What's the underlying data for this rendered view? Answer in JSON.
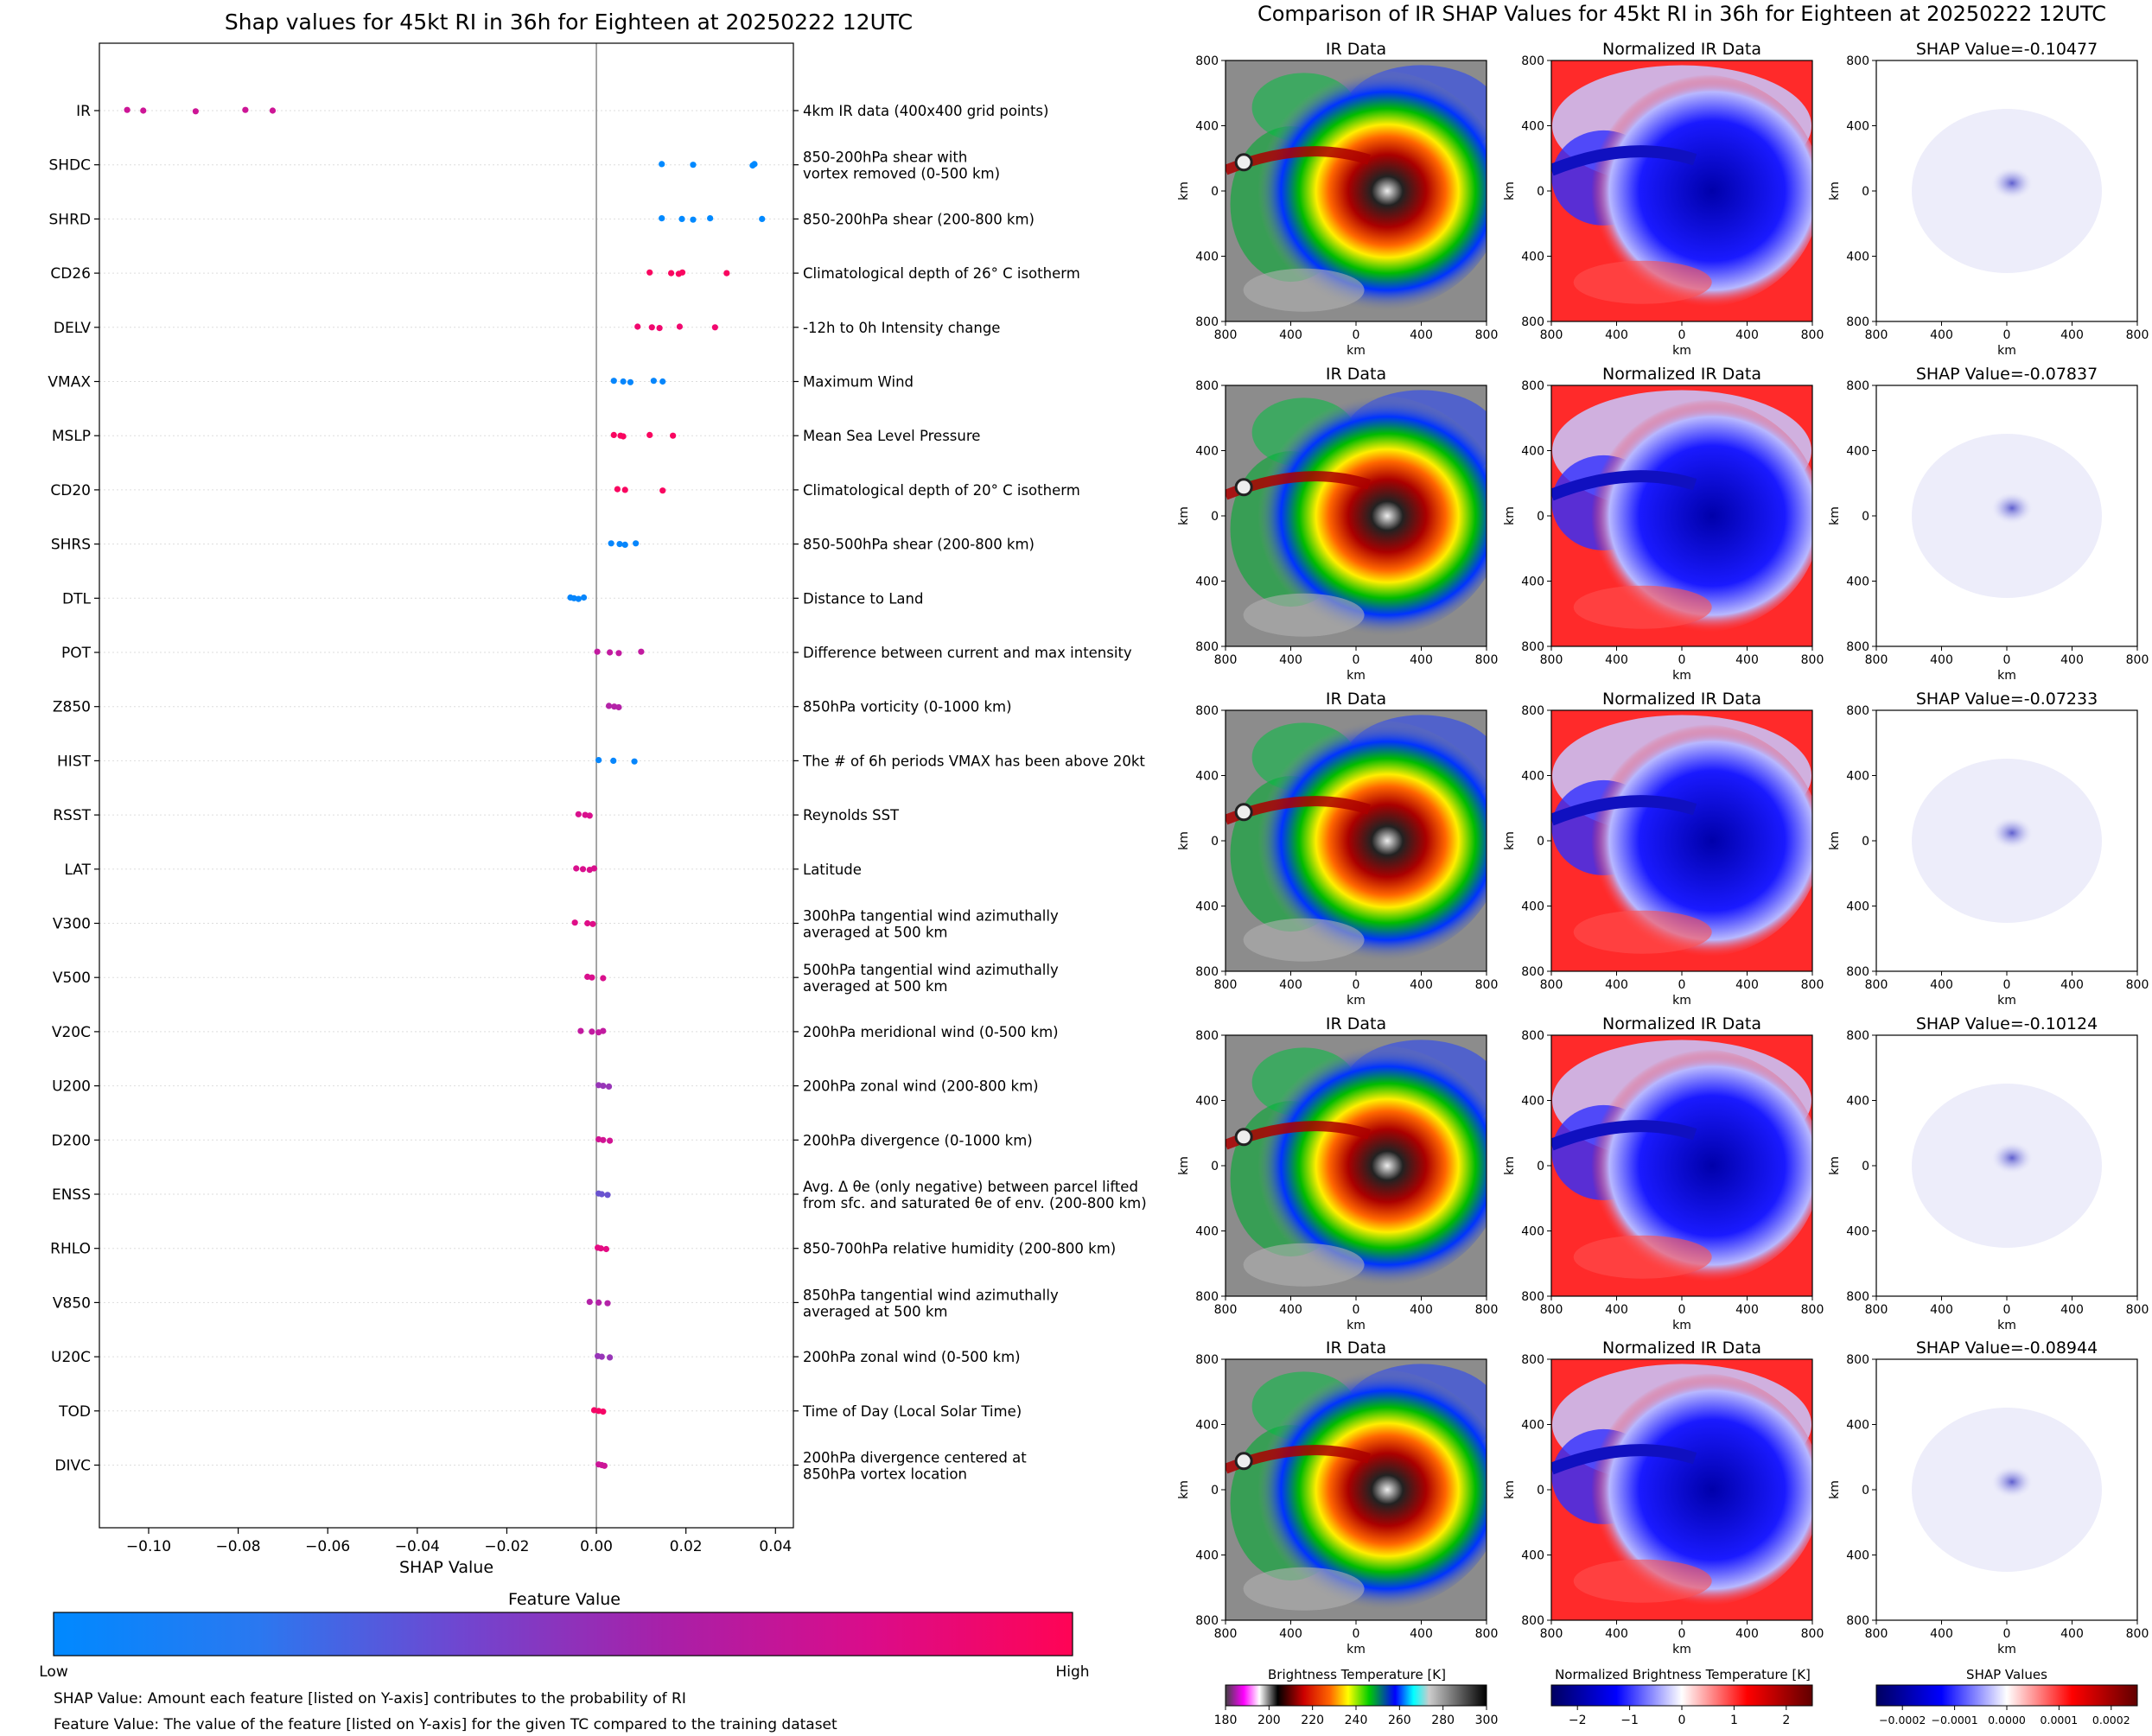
{
  "left": {
    "title": "Shap values for 45kt RI in 36h for Eighteen at 20250222 12UTC",
    "xlabel": "SHAP Value",
    "features": [
      {
        "code": "IR",
        "desc": [
          "4km IR data (400x400 grid points)"
        ]
      },
      {
        "code": "SHDC",
        "desc": [
          "850-200hPa shear with",
          "vortex removed (0-500 km)"
        ]
      },
      {
        "code": "SHRD",
        "desc": [
          "850-200hPa shear (200-800 km)"
        ]
      },
      {
        "code": "CD26",
        "desc": [
          "Climatological depth of 26° C isotherm"
        ]
      },
      {
        "code": "DELV",
        "desc": [
          "-12h to 0h Intensity change"
        ]
      },
      {
        "code": "VMAX",
        "desc": [
          "Maximum Wind"
        ]
      },
      {
        "code": "MSLP",
        "desc": [
          "Mean Sea Level Pressure"
        ]
      },
      {
        "code": "CD20",
        "desc": [
          "Climatological depth of 20° C isotherm"
        ]
      },
      {
        "code": "SHRS",
        "desc": [
          "850-500hPa shear (200-800 km)"
        ]
      },
      {
        "code": "DTL",
        "desc": [
          "Distance to Land"
        ]
      },
      {
        "code": "POT",
        "desc": [
          "Difference between current and max intensity"
        ]
      },
      {
        "code": "Z850",
        "desc": [
          "850hPa vorticity (0-1000 km)"
        ]
      },
      {
        "code": "HIST",
        "desc": [
          "The # of 6h periods VMAX has been above 20kt"
        ]
      },
      {
        "code": "RSST",
        "desc": [
          "Reynolds SST"
        ]
      },
      {
        "code": "LAT",
        "desc": [
          "Latitude"
        ]
      },
      {
        "code": "V300",
        "desc": [
          "300hPa tangential wind azimuthally",
          "averaged at 500 km"
        ]
      },
      {
        "code": "V500",
        "desc": [
          "500hPa tangential wind azimuthally",
          "averaged at 500 km"
        ]
      },
      {
        "code": "V20C",
        "desc": [
          "200hPa meridional wind (0-500 km)"
        ]
      },
      {
        "code": "U200",
        "desc": [
          "200hPa zonal wind (200-800 km)"
        ]
      },
      {
        "code": "D200",
        "desc": [
          "200hPa divergence (0-1000 km)"
        ]
      },
      {
        "code": "ENSS",
        "desc": [
          "Avg. Δ θe (only negative) between parcel lifted",
          "from sfc. and saturated θe of env. (200-800 km)"
        ]
      },
      {
        "code": "RHLO",
        "desc": [
          "850-700hPa relative humidity (200-800 km)"
        ]
      },
      {
        "code": "V850",
        "desc": [
          "850hPa tangential wind azimuthally",
          "averaged at 500 km"
        ]
      },
      {
        "code": "U20C",
        "desc": [
          "200hPa zonal wind (0-500 km)"
        ]
      },
      {
        "code": "TOD",
        "desc": [
          "Time of Day (Local Solar Time)"
        ]
      },
      {
        "code": "DIVC",
        "desc": [
          "200hPa divergence centered at",
          "850hPa vortex location"
        ]
      }
    ],
    "colorbar_title": "Feature Value",
    "colorbar_low": "Low",
    "colorbar_high": "High",
    "note1": "SHAP Value: Amount each feature [listed on Y-axis] contributes to the probability of RI",
    "note2": "Feature Value: The value of the feature [listed on Y-axis] for the given TC compared to the training dataset"
  },
  "chart_data": {
    "type": "scatter",
    "title": "Shap values for 45kt RI in 36h for Eighteen at 20250222 12UTC",
    "xlabel": "SHAP Value",
    "xlim": [
      -0.111,
      0.044
    ],
    "xticks": [
      -0.1,
      -0.08,
      -0.06,
      -0.04,
      -0.02,
      0.0,
      0.02,
      0.04
    ],
    "xtick_labels": [
      "−0.10",
      "−0.08",
      "−0.06",
      "−0.04",
      "−0.02",
      "0.00",
      "0.02",
      "0.04"
    ],
    "colorscale": [
      "#0089ff",
      "#4a66e0",
      "#8a3fc0",
      "#c21aa0",
      "#e80a80",
      "#ff0455"
    ],
    "series": [
      {
        "feature": "IR",
        "points": [
          [
            -0.1048,
            0.66
          ],
          [
            -0.1012,
            0.66
          ],
          [
            -0.0895,
            0.66
          ],
          [
            -0.0784,
            0.66
          ],
          [
            -0.0723,
            0.66
          ]
        ]
      },
      {
        "feature": "SHDC",
        "points": [
          [
            0.0146,
            0.0
          ],
          [
            0.0216,
            0.0
          ],
          [
            0.0349,
            0.0
          ],
          [
            0.0353,
            0.0
          ]
        ]
      },
      {
        "feature": "SHRD",
        "points": [
          [
            0.0146,
            0.0
          ],
          [
            0.0191,
            0.0
          ],
          [
            0.0216,
            0.0
          ],
          [
            0.0254,
            0.0
          ],
          [
            0.037,
            0.0
          ]
        ]
      },
      {
        "feature": "CD26",
        "points": [
          [
            0.0119,
            0.95
          ],
          [
            0.0167,
            0.95
          ],
          [
            0.0184,
            0.95
          ],
          [
            0.0192,
            0.95
          ],
          [
            0.0291,
            0.95
          ]
        ]
      },
      {
        "feature": "DELV",
        "points": [
          [
            0.0092,
            0.88
          ],
          [
            0.0124,
            0.88
          ],
          [
            0.0141,
            0.88
          ],
          [
            0.0186,
            0.88
          ],
          [
            0.0265,
            0.88
          ]
        ]
      },
      {
        "feature": "VMAX",
        "points": [
          [
            0.0039,
            0.02
          ],
          [
            0.006,
            0.02
          ],
          [
            0.0076,
            0.02
          ],
          [
            0.0128,
            0.02
          ],
          [
            0.0148,
            0.02
          ]
        ]
      },
      {
        "feature": "MSLP",
        "points": [
          [
            0.0039,
            0.95
          ],
          [
            0.0054,
            0.95
          ],
          [
            0.006,
            0.95
          ],
          [
            0.0119,
            0.95
          ],
          [
            0.0171,
            0.95
          ]
        ]
      },
      {
        "feature": "CD20",
        "points": [
          [
            0.0047,
            0.95
          ],
          [
            0.0064,
            0.95
          ],
          [
            0.0148,
            0.95
          ]
        ]
      },
      {
        "feature": "SHRS",
        "points": [
          [
            0.0033,
            0.02
          ],
          [
            0.0052,
            0.02
          ],
          [
            0.0064,
            0.02
          ],
          [
            0.0088,
            0.02
          ]
        ]
      },
      {
        "feature": "DTL",
        "points": [
          [
            -0.0058,
            0.02
          ],
          [
            -0.005,
            0.02
          ],
          [
            -0.004,
            0.02
          ],
          [
            -0.0028,
            0.02
          ]
        ]
      },
      {
        "feature": "POT",
        "points": [
          [
            0.0002,
            0.6
          ],
          [
            0.003,
            0.6
          ],
          [
            0.005,
            0.6
          ],
          [
            0.01,
            0.6
          ]
        ]
      },
      {
        "feature": "Z850",
        "points": [
          [
            0.0028,
            0.55
          ],
          [
            0.004,
            0.55
          ],
          [
            0.005,
            0.55
          ]
        ]
      },
      {
        "feature": "HIST",
        "points": [
          [
            0.0005,
            0.02
          ],
          [
            0.0038,
            0.02
          ],
          [
            0.0085,
            0.02
          ]
        ]
      },
      {
        "feature": "RSST",
        "points": [
          [
            -0.004,
            0.72
          ],
          [
            -0.0025,
            0.72
          ],
          [
            -0.0015,
            0.72
          ]
        ]
      },
      {
        "feature": "LAT",
        "points": [
          [
            -0.0045,
            0.72
          ],
          [
            -0.003,
            0.72
          ],
          [
            -0.0015,
            0.72
          ],
          [
            -0.0005,
            0.72
          ]
        ]
      },
      {
        "feature": "V300",
        "points": [
          [
            -0.0048,
            0.75
          ],
          [
            -0.002,
            0.75
          ],
          [
            -0.0008,
            0.75
          ]
        ]
      },
      {
        "feature": "V500",
        "points": [
          [
            -0.002,
            0.72
          ],
          [
            -0.001,
            0.72
          ],
          [
            0.0015,
            0.72
          ]
        ]
      },
      {
        "feature": "V20C",
        "points": [
          [
            -0.0035,
            0.6
          ],
          [
            -0.001,
            0.6
          ],
          [
            0.0005,
            0.6
          ],
          [
            0.0015,
            0.6
          ]
        ]
      },
      {
        "feature": "U200",
        "points": [
          [
            0.0005,
            0.45
          ],
          [
            0.0015,
            0.45
          ],
          [
            0.0028,
            0.45
          ]
        ]
      },
      {
        "feature": "D200",
        "points": [
          [
            0.0005,
            0.68
          ],
          [
            0.0015,
            0.68
          ],
          [
            0.003,
            0.68
          ]
        ]
      },
      {
        "feature": "ENSS",
        "points": [
          [
            0.0005,
            0.3
          ],
          [
            0.0012,
            0.3
          ],
          [
            0.0025,
            0.3
          ]
        ]
      },
      {
        "feature": "RHLO",
        "points": [
          [
            0.0003,
            0.78
          ],
          [
            0.001,
            0.78
          ],
          [
            0.0022,
            0.78
          ]
        ]
      },
      {
        "feature": "V850",
        "points": [
          [
            -0.0015,
            0.55
          ],
          [
            0.0005,
            0.55
          ],
          [
            0.0025,
            0.55
          ]
        ]
      },
      {
        "feature": "U20C",
        "points": [
          [
            0.0003,
            0.45
          ],
          [
            0.0012,
            0.45
          ],
          [
            0.003,
            0.45
          ]
        ]
      },
      {
        "feature": "TOD",
        "points": [
          [
            -0.0005,
            0.92
          ],
          [
            0.0005,
            0.92
          ],
          [
            0.0015,
            0.92
          ]
        ]
      },
      {
        "feature": "DIVC",
        "points": [
          [
            0.0005,
            0.65
          ],
          [
            0.0012,
            0.65
          ],
          [
            0.0018,
            0.65
          ]
        ]
      }
    ]
  },
  "right": {
    "title": "Comparison of IR SHAP Values for 45kt RI in 36h for Eighteen at 20250222 12UTC",
    "col_titles": [
      "IR Data",
      "Normalized IR Data"
    ],
    "shap_titles": [
      "SHAP Value=-0.10477",
      "SHAP Value=-0.07837",
      "SHAP Value=-0.07233",
      "SHAP Value=-0.10124",
      "SHAP Value=-0.08944"
    ],
    "axis_ticks": [
      "800",
      "400",
      "0",
      "400",
      "800"
    ],
    "axis_label": "km",
    "cb1_title": "Brightness Temperature [K]",
    "cb1_ticks": [
      "180",
      "200",
      "220",
      "240",
      "260",
      "280",
      "300"
    ],
    "cb2_title": "Normalized Brightness Temperature [K]",
    "cb2_ticks": [
      "−2",
      "−1",
      "0",
      "1",
      "2"
    ],
    "cb3_title": "SHAP Values",
    "cb3_ticks": [
      "−0.0002",
      "−0.0001",
      "0.0000",
      "0.0001",
      "0.0002"
    ]
  }
}
